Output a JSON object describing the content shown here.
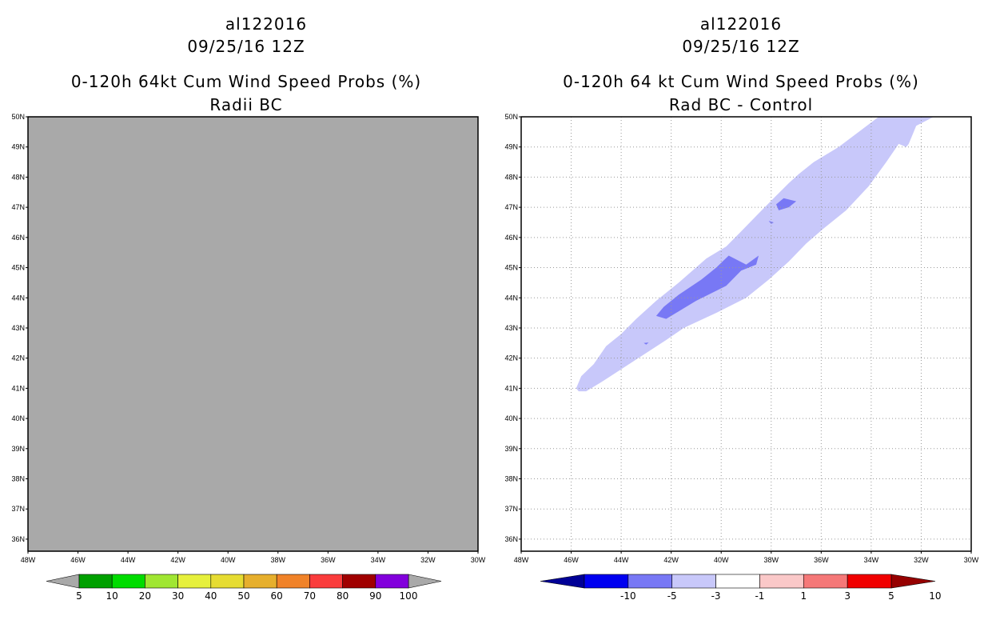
{
  "chart_data": [
    {
      "type": "map",
      "storm_id": "al122016",
      "date": "09/25/16 12Z",
      "title": "0-120h 64kt Cum Wind Speed Probs (%)",
      "subtitle": "Radii BC",
      "lon_range": [
        -48,
        -30
      ],
      "lat_range": [
        35.6,
        50
      ],
      "x_ticks": [
        "48W",
        "46W",
        "44W",
        "42W",
        "40W",
        "38W",
        "36W",
        "34W",
        "32W",
        "30W"
      ],
      "y_ticks": [
        "36N",
        "37N",
        "38N",
        "39N",
        "40N",
        "41N",
        "42N",
        "43N",
        "44N",
        "45N",
        "46N",
        "47N",
        "48N",
        "49N",
        "50N"
      ],
      "field": "no data (uniform gray)",
      "field_color": "#a9a9a9",
      "colorbar": {
        "labels": [
          "5",
          "10",
          "20",
          "30",
          "40",
          "50",
          "60",
          "70",
          "80",
          "90",
          "100"
        ],
        "colors": [
          "#00a000",
          "#00dc00",
          "#a0e632",
          "#e6f03c",
          "#e6dc32",
          "#e6af2d",
          "#f08228",
          "#fa3c3c",
          "#a00000",
          "#8200dc"
        ],
        "end_low": "#a9a9a9",
        "end_high": "#a9a9a9"
      }
    },
    {
      "type": "map",
      "storm_id": "al122016",
      "date": "09/25/16 12Z",
      "title": "0-120h 64 kt Cum Wind Speed Probs (%)",
      "subtitle": "Rad BC - Control",
      "lon_range": [
        -48,
        -30
      ],
      "lat_range": [
        35.6,
        50
      ],
      "x_ticks": [
        "48W",
        "46W",
        "44W",
        "42W",
        "40W",
        "38W",
        "36W",
        "34W",
        "32W",
        "30W"
      ],
      "y_ticks": [
        "36N",
        "37N",
        "38N",
        "39N",
        "40N",
        "41N",
        "42N",
        "43N",
        "44N",
        "45N",
        "46N",
        "47N",
        "48N",
        "49N",
        "50N"
      ],
      "contours": [
        {
          "level": "-3 to -1",
          "color": "#c8c8fa",
          "lonlat": [
            [
              -45.7,
              40.9
            ],
            [
              -45.4,
              40.9
            ],
            [
              -44.8,
              41.2
            ],
            [
              -43.5,
              41.9
            ],
            [
              -42.2,
              42.6
            ],
            [
              -41.5,
              43.0
            ],
            [
              -40.2,
              43.5
            ],
            [
              -39.0,
              44.0
            ],
            [
              -38.1,
              44.6
            ],
            [
              -37.3,
              45.2
            ],
            [
              -36.6,
              45.8
            ],
            [
              -35.9,
              46.3
            ],
            [
              -35.0,
              46.9
            ],
            [
              -34.1,
              47.7
            ],
            [
              -33.4,
              48.5
            ],
            [
              -32.9,
              49.1
            ],
            [
              -32.6,
              49.0
            ],
            [
              -32.5,
              49.1
            ],
            [
              -32.2,
              49.7
            ],
            [
              -31.5,
              50.0
            ],
            [
              -33.7,
              50.0
            ],
            [
              -35.3,
              49.0
            ],
            [
              -36.3,
              48.5
            ],
            [
              -36.9,
              48.1
            ],
            [
              -37.3,
              47.8
            ],
            [
              -37.9,
              47.3
            ],
            [
              -38.5,
              46.8
            ],
            [
              -39.2,
              46.2
            ],
            [
              -39.8,
              45.7
            ],
            [
              -40.6,
              45.3
            ],
            [
              -41.7,
              44.5
            ],
            [
              -42.6,
              43.9
            ],
            [
              -43.4,
              43.3
            ],
            [
              -44.0,
              42.8
            ],
            [
              -44.6,
              42.4
            ],
            [
              -45.1,
              41.8
            ],
            [
              -45.6,
              41.4
            ],
            [
              -45.8,
              41.0
            ]
          ]
        },
        {
          "level": "-5 to -3",
          "color": "#7878f5",
          "lonlat": [
            [
              -42.6,
              43.4
            ],
            [
              -42.2,
              43.3
            ],
            [
              -41.0,
              43.9
            ],
            [
              -39.8,
              44.4
            ],
            [
              -39.2,
              44.9
            ],
            [
              -38.6,
              45.1
            ],
            [
              -38.5,
              45.4
            ],
            [
              -39.0,
              45.1
            ],
            [
              -39.7,
              45.4
            ],
            [
              -40.2,
              45.0
            ],
            [
              -40.8,
              44.6
            ],
            [
              -41.7,
              44.1
            ],
            [
              -42.3,
              43.7
            ]
          ]
        },
        {
          "level": "-5 to -3",
          "color": "#7878f5",
          "lonlat": [
            [
              -37.7,
              46.9
            ],
            [
              -37.3,
              47.0
            ],
            [
              -37.0,
              47.2
            ],
            [
              -37.5,
              47.3
            ],
            [
              -37.8,
              47.1
            ]
          ]
        },
        {
          "level": "-5 to -3",
          "color": "#7878f5",
          "lonlat": [
            [
              -38.1,
              46.55
            ],
            [
              -37.9,
              46.5
            ],
            [
              -38.0,
              46.45
            ]
          ]
        },
        {
          "level": "-5 to -3",
          "color": "#7878f5",
          "lonlat": [
            [
              -43.1,
              42.5
            ],
            [
              -42.9,
              42.52
            ],
            [
              -43.0,
              42.45
            ]
          ]
        }
      ],
      "colorbar": {
        "labels": [
          "-10",
          "-5",
          "-3",
          "-1",
          "1",
          "3",
          "5",
          "10"
        ],
        "colors": [
          "#0000f0",
          "#7878f5",
          "#c8c8fa",
          "#ffffff",
          "#fac8c8",
          "#f57878",
          "#f00000"
        ],
        "end_low": "#000096",
        "end_high": "#960000"
      }
    }
  ]
}
